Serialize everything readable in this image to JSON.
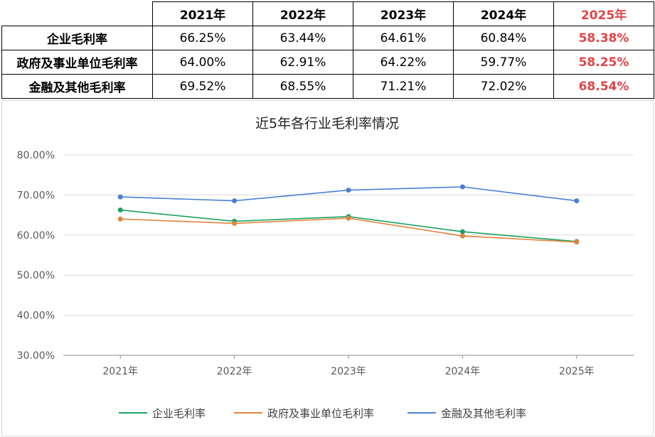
{
  "table": {
    "columns": [
      "2021年",
      "2022年",
      "2023年",
      "2024年",
      "2025年"
    ],
    "rows": [
      {
        "label": "企业毛利率",
        "values": [
          "66.25%",
          "63.44%",
          "64.61%",
          "60.84%",
          "58.38%"
        ]
      },
      {
        "label": "政府及事业单位毛利率",
        "values": [
          "64.00%",
          "62.91%",
          "64.22%",
          "59.77%",
          "58.25%"
        ]
      },
      {
        "label": "金融及其他毛利率",
        "values": [
          "69.52%",
          "68.55%",
          "71.21%",
          "72.02%",
          "68.54%"
        ]
      }
    ],
    "highlight_color": "#e04545"
  },
  "chart_data": {
    "type": "line",
    "title": "近5年各行业毛利率情况",
    "categories": [
      "2021年",
      "2022年",
      "2023年",
      "2024年",
      "2025年"
    ],
    "ylim": [
      30,
      80
    ],
    "yticks": [
      30,
      40,
      50,
      60,
      70,
      80
    ],
    "ytick_labels": [
      "30.00%",
      "40.00%",
      "50.00%",
      "60.00%",
      "70.00%",
      "80.00%"
    ],
    "grid": true,
    "legend_position": "bottom",
    "series": [
      {
        "name": "企业毛利率",
        "values": [
          66.25,
          63.44,
          64.61,
          60.84,
          58.38
        ],
        "color": "#1aa260"
      },
      {
        "name": "政府及事业单位毛利率",
        "values": [
          64.0,
          62.91,
          64.22,
          59.77,
          58.25
        ],
        "color": "#e0843f"
      },
      {
        "name": "金融及其他毛利率",
        "values": [
          69.52,
          68.55,
          71.21,
          72.02,
          68.54
        ],
        "color": "#4a7fd4"
      }
    ]
  }
}
